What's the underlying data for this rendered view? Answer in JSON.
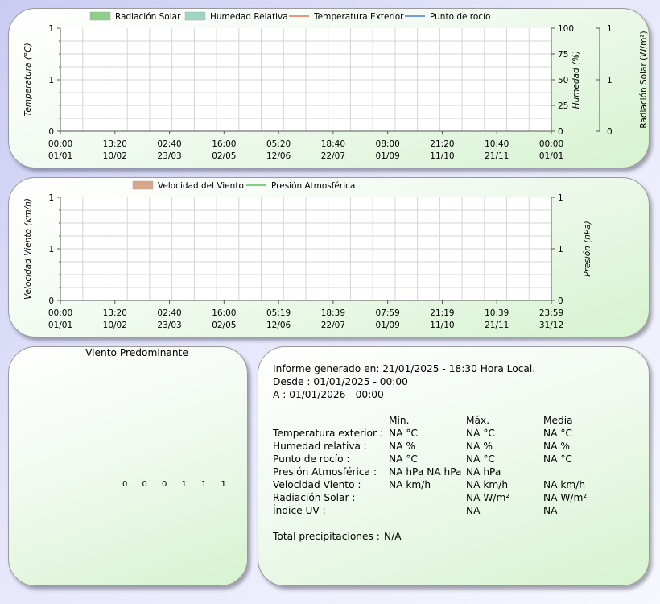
{
  "chart_data": [
    {
      "type": "line",
      "title": "",
      "legend": [
        {
          "label": "Radiación Solar",
          "kind": "area",
          "color": "#8ecf8a"
        },
        {
          "label": "Humedad Relativa",
          "kind": "area",
          "color": "#9ed6c3"
        },
        {
          "label": "Temperatura Exterior",
          "kind": "line",
          "color": "#e25a32"
        },
        {
          "label": "Punto de rocío",
          "kind": "line",
          "color": "#2d5fe0"
        }
      ],
      "legend_placement": "top",
      "grid": true,
      "series": [],
      "x_ticks": [
        [
          "00:00",
          "01/01"
        ],
        [
          "13:20",
          "10/02"
        ],
        [
          "02:40",
          "23/03"
        ],
        [
          "16:00",
          "02/05"
        ],
        [
          "05:20",
          "12/06"
        ],
        [
          "18:40",
          "22/07"
        ],
        [
          "08:00",
          "01/09"
        ],
        [
          "21:20",
          "11/10"
        ],
        [
          "10:40",
          "21/11"
        ],
        [
          "00:00",
          "01/01"
        ]
      ],
      "y_left": {
        "label": "Temperatura (°C)",
        "ticks": [
          "0",
          "1",
          "1"
        ]
      },
      "y_right": {
        "label": "Humedad (%)",
        "ticks": [
          "0",
          "25",
          "50",
          "75",
          "100"
        ]
      },
      "y_right2": {
        "label": "Radiación Solar (W/m²)",
        "ticks": [
          "0",
          "1",
          "1"
        ]
      }
    },
    {
      "type": "line",
      "title": "",
      "legend": [
        {
          "label": "Velocidad del Viento",
          "kind": "area",
          "color": "#d9a68a"
        },
        {
          "label": "Presión Atmosférica",
          "kind": "line",
          "color": "#3cb43c"
        }
      ],
      "legend_placement": "top",
      "grid": true,
      "series": [],
      "x_ticks": [
        [
          "00:00",
          "01/01"
        ],
        [
          "13:20",
          "10/02"
        ],
        [
          "02:40",
          "23/03"
        ],
        [
          "16:00",
          "02/05"
        ],
        [
          "05:19",
          "12/06"
        ],
        [
          "18:39",
          "22/07"
        ],
        [
          "07:59",
          "01/09"
        ],
        [
          "21:19",
          "11/10"
        ],
        [
          "10:39",
          "21/11"
        ],
        [
          "23:59",
          "31/12"
        ]
      ],
      "y_left": {
        "label": "Velocidad Viento (km/h)",
        "ticks": [
          "0",
          "1",
          "1"
        ]
      },
      "y_right": {
        "label": "Presión (hPa)",
        "ticks": [
          "0",
          "1",
          "1"
        ]
      }
    }
  ],
  "wind": {
    "title": "Viento Predominante",
    "values": [
      "0",
      "0",
      "0",
      "1",
      "1",
      "1"
    ]
  },
  "summary": {
    "generated": "Informe generado en: 21/01/2025 - 18:30 Hora Local.",
    "from": "Desde : 01/01/2025 - 00:00",
    "to": "A : 01/01/2026 - 00:00",
    "headers": [
      "Mín.",
      "Máx.",
      "Media"
    ],
    "rows": [
      {
        "label": "Temperatura exterior :",
        "min": "NA °C",
        "max": "NA °C",
        "avg": "NA °C"
      },
      {
        "label": "Humedad relativa :",
        "min": "NA %",
        "max": "NA %",
        "avg": "NA %"
      },
      {
        "label": "Punto de rocío :",
        "min": "NA °C",
        "max": "NA °C",
        "avg": "NA °C"
      },
      {
        "label": "Presión Atmosférica :",
        "min": "NA hPa NA hPa",
        "max": "NA hPa",
        "avg": ""
      },
      {
        "label": "Velocidad Viento :",
        "min": "NA km/h",
        "max": "NA km/h",
        "avg": "NA km/h"
      },
      {
        "label": "Radiación Solar :",
        "min": "",
        "max": "NA W/m²",
        "avg": "NA W/m²"
      },
      {
        "label": "Índice UV :",
        "min": "",
        "max": "NA",
        "avg": "NA"
      }
    ],
    "precip_label": "Total precipitaciones :",
    "precip_value": "N/A"
  }
}
